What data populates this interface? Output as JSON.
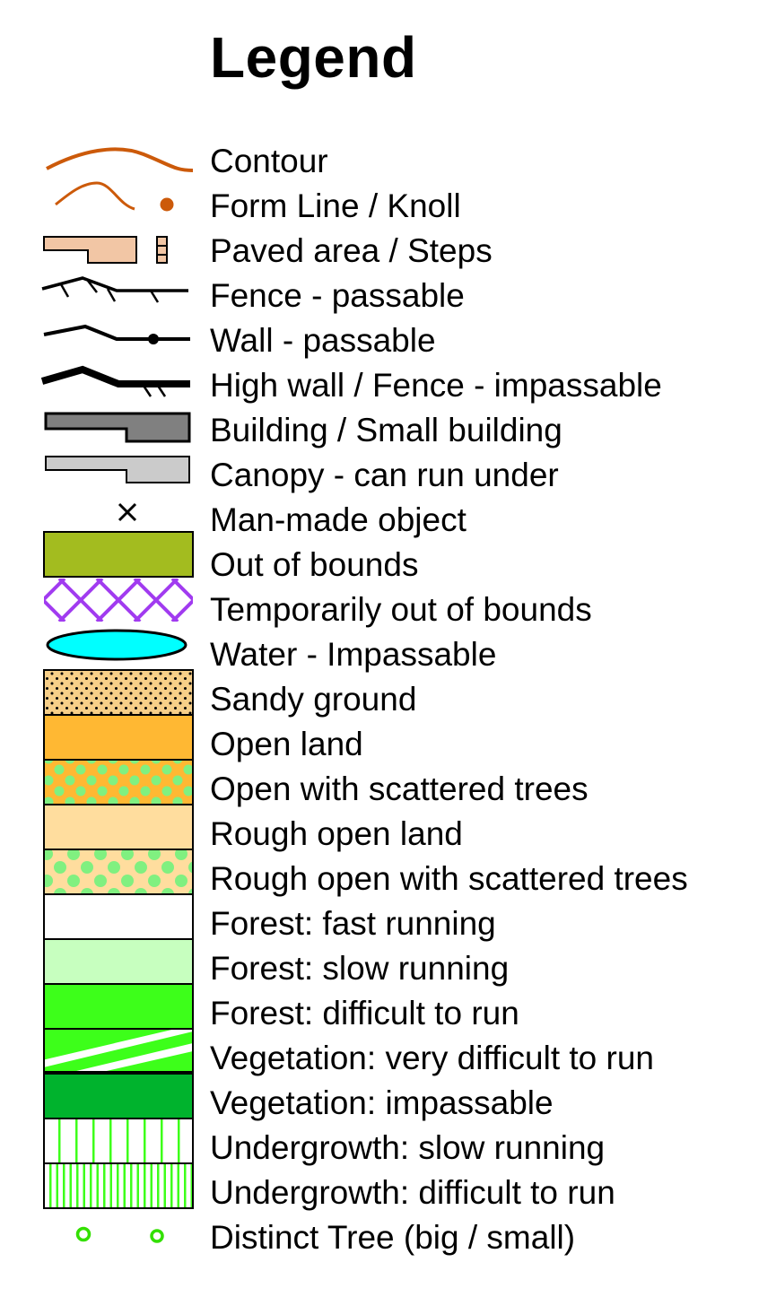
{
  "legend": {
    "title": "Legend",
    "colors": {
      "contour": "#cc5a0a",
      "paved": "#f2c6a5",
      "building": "#808080",
      "canopy": "#cbcbcb",
      "out_of_bounds": "#a3bc1f",
      "temp_oob": "#a13bf0",
      "water": "#00ffff",
      "sandy": "#f7cf88",
      "open_land": "#ffb833",
      "rough_open": "#ffdd9e",
      "tree_dots": "#80f080",
      "forest_fast": "#ffffff",
      "forest_slow": "#c7ffbf",
      "forest_difficult": "#3dff1a",
      "veg_impassable": "#00b32d",
      "undergrowth_stripe": "#3dff1a",
      "distinct_tree": "#33e000"
    },
    "items": [
      {
        "label": "Contour",
        "icon": "contour-icon"
      },
      {
        "label": "Form Line / Knoll",
        "icon": "form-line-knoll-icon"
      },
      {
        "label": "Paved area / Steps",
        "icon": "paved-steps-icon"
      },
      {
        "label": "Fence - passable",
        "icon": "fence-passable-icon"
      },
      {
        "label": "Wall - passable",
        "icon": "wall-passable-icon"
      },
      {
        "label": "High wall / Fence - impassable",
        "icon": "high-wall-icon"
      },
      {
        "label": "Building / Small building",
        "icon": "building-icon"
      },
      {
        "label": "Canopy - can run under",
        "icon": "canopy-icon"
      },
      {
        "label": "Man-made object",
        "icon": "man-made-object-icon"
      },
      {
        "label": "Out of bounds",
        "icon": "out-of-bounds-swatch"
      },
      {
        "label": "Temporarily out of bounds",
        "icon": "temporarily-oob-swatch"
      },
      {
        "label": "Water - Impassable",
        "icon": "water-icon"
      },
      {
        "label": "Sandy ground",
        "icon": "sandy-ground-swatch"
      },
      {
        "label": "Open land",
        "icon": "open-land-swatch"
      },
      {
        "label": "Open with scattered trees",
        "icon": "open-scattered-trees-swatch"
      },
      {
        "label": "Rough open land",
        "icon": "rough-open-land-swatch"
      },
      {
        "label": "Rough open with scattered trees",
        "icon": "rough-open-scattered-trees-swatch"
      },
      {
        "label": "Forest: fast running",
        "icon": "forest-fast-swatch"
      },
      {
        "label": "Forest: slow running",
        "icon": "forest-slow-swatch"
      },
      {
        "label": "Forest: difficult to run",
        "icon": "forest-difficult-swatch"
      },
      {
        "label": "Vegetation: very difficult to run",
        "icon": "vegetation-very-difficult-swatch"
      },
      {
        "label": "Vegetation: impassable",
        "icon": "vegetation-impassable-swatch"
      },
      {
        "label": "Undergrowth: slow running",
        "icon": "undergrowth-slow-swatch"
      },
      {
        "label": "Undergrowth: difficult to run",
        "icon": "undergrowth-difficult-swatch"
      },
      {
        "label": "Distinct Tree (big / small)",
        "icon": "distinct-tree-icon"
      }
    ]
  }
}
